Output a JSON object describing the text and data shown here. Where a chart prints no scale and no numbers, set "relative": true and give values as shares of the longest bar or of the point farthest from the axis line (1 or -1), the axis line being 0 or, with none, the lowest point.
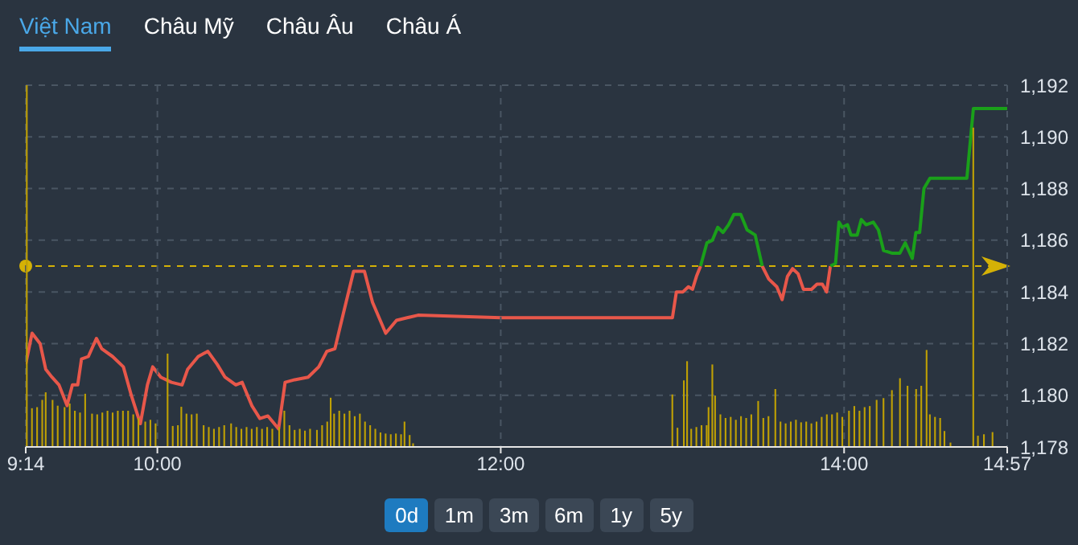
{
  "chart_data": [
    {
      "type": "line",
      "annotations": [
        "Việt Nam",
        "Châu Mỹ",
        "Châu Âu",
        "Châu Á",
        "0d",
        "1m",
        "3m",
        "6m",
        "1y",
        "5y"
      ],
      "xlim": [
        9.2333,
        14.95
      ],
      "ylim": [
        1178,
        1192
      ],
      "yticks": [
        {
          "value": 1178,
          "label": "1,178"
        },
        {
          "value": 1180,
          "label": "1,180"
        },
        {
          "value": 1182,
          "label": "1,182"
        },
        {
          "value": 1184,
          "label": "1,184"
        },
        {
          "value": 1186,
          "label": "1,186"
        },
        {
          "value": 1188,
          "label": "1,188"
        },
        {
          "value": 1190,
          "label": "1,190"
        },
        {
          "value": 1192,
          "label": "1,192"
        }
      ],
      "grid": "y",
      "tick_labels": "y",
      "ref_lines": [
        {
          "axis": "y",
          "value": 1185,
          "color": "#d4b106",
          "line_style": "dashed"
        }
      ],
      "series": [
        {
          "color": "#e8574a",
          "x": [
            9.2333,
            9.27,
            9.317,
            9.35,
            9.386,
            9.427,
            9.474,
            9.505,
            9.536,
            9.558,
            9.598,
            9.645,
            9.676,
            9.739,
            9.802,
            9.848,
            9.901,
            9.942,
            9.973,
            10.02,
            10.082,
            10.144,
            10.176,
            10.238,
            10.294,
            10.348,
            10.394,
            10.457,
            10.494,
            10.55,
            10.597,
            10.644,
            10.706,
            10.744,
            10.8,
            10.878,
            10.94,
            10.987,
            11.034,
            11.081,
            11.143,
            11.206,
            11.253,
            11.33,
            11.393,
            11.455,
            11.518,
            12.0,
            13.0,
            13.023,
            13.061,
            13.093,
            13.117,
            13.14,
            13.164,
            13.3,
            13.523,
            13.561,
            13.608,
            13.639,
            13.67,
            13.7,
            13.732,
            13.763,
            13.81,
            13.842,
            13.873,
            13.898,
            13.92
          ],
          "values": [
            1181.2,
            1182.4,
            1182.0,
            1181.0,
            1180.7,
            1180.4,
            1179.6,
            1180.4,
            1180.4,
            1181.4,
            1181.5,
            1182.2,
            1181.8,
            1181.5,
            1181.1,
            1180.0,
            1178.9,
            1180.4,
            1181.1,
            1180.7,
            1180.5,
            1180.4,
            1181.0,
            1181.5,
            1181.7,
            1181.2,
            1180.7,
            1180.4,
            1180.5,
            1179.6,
            1179.1,
            1179.2,
            1178.7,
            1180.5,
            1180.6,
            1180.7,
            1181.1,
            1181.7,
            1181.8,
            1183.1,
            1184.8,
            1184.8,
            1183.6,
            1182.4,
            1182.9,
            1183.0,
            1183.1,
            1183.0,
            1183.0,
            1184.0,
            1184.0,
            1184.2,
            1184.1,
            1184.6,
            1185.0,
            null,
            1185.0,
            1184.5,
            1184.2,
            1183.7,
            1184.6,
            1184.9,
            1184.7,
            1184.1,
            1184.1,
            1184.3,
            1184.3,
            1184.0,
            1185.0
          ]
        },
        {
          "color": "#1aa01a",
          "x": [
            13.164,
            13.201,
            13.233,
            13.264,
            13.295,
            13.327,
            13.358,
            13.398,
            13.435,
            13.482,
            13.523,
            13.7,
            13.92,
            13.95,
            13.97,
            13.99,
            14.02,
            14.04,
            14.076,
            14.1,
            14.128,
            14.17,
            14.2,
            14.23,
            14.278,
            14.325,
            14.356,
            14.397,
            14.418,
            14.44,
            14.465,
            14.5,
            14.715,
            14.753,
            14.95
          ],
          "values": [
            1185.0,
            1185.9,
            1186.0,
            1186.5,
            1186.3,
            1186.6,
            1187.0,
            1187.0,
            1186.4,
            1186.2,
            1185.0,
            null,
            1185.0,
            1185.1,
            1186.7,
            1186.5,
            1186.6,
            1186.2,
            1186.2,
            1186.8,
            1186.6,
            1186.7,
            1186.4,
            1185.6,
            1185.5,
            1185.5,
            1185.9,
            1185.3,
            1186.3,
            1186.3,
            1188.0,
            1188.4,
            1188.4,
            1191.1,
            1191.1
          ]
        }
      ]
    },
    {
      "type": "bar",
      "relative": true,
      "color": "#bfa004",
      "xlim": [
        9.2333,
        14.95
      ],
      "tick_labels": "x",
      "grid": "x",
      "xticks": [
        {
          "value": 9.2333,
          "label": "9:14"
        },
        {
          "value": 10,
          "label": "10:00"
        },
        {
          "value": 12,
          "label": "12:00"
        },
        {
          "value": 14,
          "label": "14:00"
        },
        {
          "value": 14.95,
          "label": "14:57"
        }
      ],
      "x": [
        9.24,
        9.27,
        9.3,
        9.33,
        9.35,
        9.39,
        9.42,
        9.46,
        9.49,
        9.52,
        9.55,
        9.58,
        9.62,
        9.65,
        9.68,
        9.71,
        9.74,
        9.77,
        9.8,
        9.83,
        9.86,
        9.89,
        9.93,
        9.96,
        9.99,
        10.06,
        10.09,
        10.12,
        10.14,
        10.17,
        10.2,
        10.23,
        10.27,
        10.3,
        10.33,
        10.36,
        10.39,
        10.43,
        10.46,
        10.49,
        10.52,
        10.55,
        10.58,
        10.61,
        10.64,
        10.67,
        10.71,
        10.74,
        10.77,
        10.8,
        10.83,
        10.86,
        10.89,
        10.93,
        10.96,
        10.99,
        11.01,
        11.03,
        11.06,
        11.09,
        11.12,
        11.15,
        11.18,
        11.21,
        11.24,
        11.27,
        11.3,
        11.33,
        11.36,
        11.39,
        11.42,
        11.44,
        11.47,
        11.49,
        13.0,
        13.03,
        13.067,
        13.086,
        13.11,
        13.14,
        13.17,
        13.2,
        13.211,
        13.233,
        13.249,
        13.28,
        13.31,
        13.34,
        13.37,
        13.4,
        13.43,
        13.46,
        13.5,
        13.53,
        13.56,
        13.6,
        13.63,
        13.66,
        13.69,
        13.72,
        13.75,
        13.78,
        13.81,
        13.84,
        13.87,
        13.9,
        13.93,
        13.96,
        13.99,
        14.029,
        14.06,
        14.09,
        14.12,
        14.15,
        14.19,
        14.23,
        14.279,
        14.326,
        14.37,
        14.42,
        14.45,
        14.481,
        14.5,
        14.53,
        14.56,
        14.585,
        14.62,
        14.753,
        14.78,
        14.815,
        14.865
      ],
      "values": [
        1.0,
        0.107,
        0.11,
        0.13,
        0.151,
        0.13,
        0.114,
        0.11,
        0.12,
        0.1,
        0.095,
        0.147,
        0.092,
        0.09,
        0.095,
        0.1,
        0.095,
        0.1,
        0.1,
        0.1,
        0.09,
        0.08,
        0.07,
        0.075,
        0.065,
        0.258,
        0.058,
        0.06,
        0.111,
        0.092,
        0.09,
        0.092,
        0.06,
        0.055,
        0.05,
        0.055,
        0.06,
        0.065,
        0.055,
        0.05,
        0.055,
        0.05,
        0.055,
        0.05,
        0.055,
        0.05,
        0.055,
        0.1,
        0.06,
        0.047,
        0.05,
        0.045,
        0.05,
        0.047,
        0.06,
        0.07,
        0.136,
        0.092,
        0.1,
        0.092,
        0.1,
        0.085,
        0.092,
        0.07,
        0.06,
        0.05,
        0.04,
        0.037,
        0.035,
        0.037,
        0.035,
        0.07,
        0.033,
        0.01,
        0.145,
        0.053,
        0.184,
        0.237,
        0.05,
        0.055,
        0.06,
        0.06,
        0.11,
        0.228,
        0.142,
        0.09,
        0.08,
        0.083,
        0.075,
        0.085,
        0.08,
        0.09,
        0.127,
        0.08,
        0.085,
        0.16,
        0.07,
        0.065,
        0.07,
        0.075,
        0.068,
        0.07,
        0.065,
        0.07,
        0.083,
        0.09,
        0.09,
        0.095,
        0.083,
        0.1,
        0.113,
        0.1,
        0.11,
        0.113,
        0.13,
        0.135,
        0.157,
        0.19,
        0.169,
        0.16,
        0.169,
        0.268,
        0.09,
        0.083,
        0.08,
        0.044,
        0.012,
        0.883,
        0.031,
        0.035,
        0.041
      ]
    }
  ]
}
